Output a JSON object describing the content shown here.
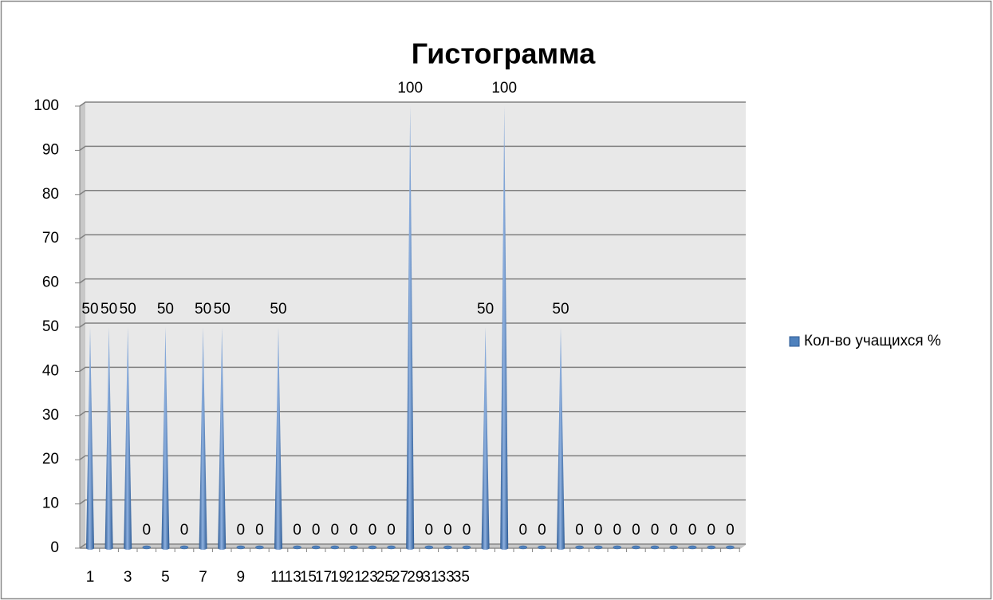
{
  "chart_data": {
    "type": "bar",
    "title": "Гистограмма",
    "categories": [
      "1",
      null,
      "3",
      null,
      "5",
      null,
      "7",
      null,
      "9",
      null,
      "11",
      null,
      "13",
      null,
      "15",
      null,
      "17",
      null,
      "19",
      null,
      "21",
      null,
      "23",
      null,
      "25",
      null,
      "27",
      null,
      "29",
      null,
      "31",
      null,
      "33",
      null,
      "35"
    ],
    "series": [
      {
        "name": "Кол-во учащихся %",
        "color": "#4f81bd",
        "values": [
          50,
          50,
          50,
          0,
          50,
          0,
          50,
          50,
          0,
          0,
          50,
          0,
          0,
          0,
          0,
          0,
          0,
          100,
          0,
          0,
          0,
          50,
          100,
          0,
          0,
          50,
          0,
          0,
          0,
          0,
          0,
          0,
          0,
          0,
          0
        ]
      }
    ],
    "ylim": [
      0,
      100
    ],
    "yticks": [
      0,
      10,
      20,
      30,
      40,
      50,
      60,
      70,
      80,
      90,
      100
    ],
    "grid": true,
    "legend": "right"
  }
}
